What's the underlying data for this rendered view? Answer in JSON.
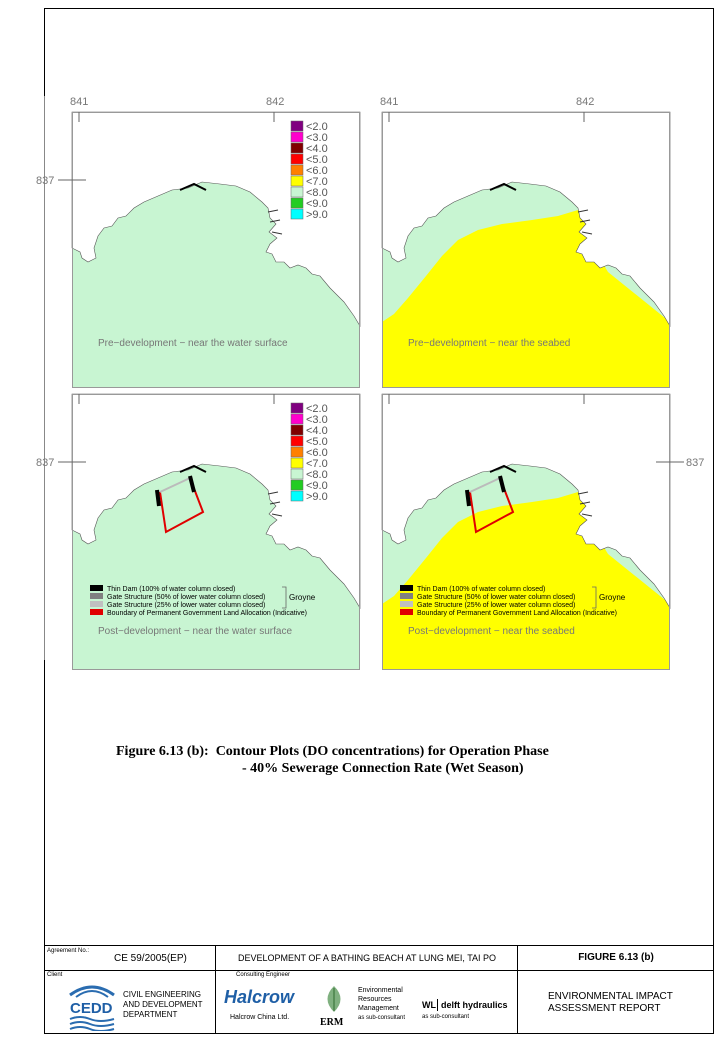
{
  "maps": [
    {
      "id": "a",
      "caption": "Pre−development − near the water surface",
      "mode": "surface",
      "post": false,
      "legend": true,
      "right_y": false
    },
    {
      "id": "b",
      "caption": "Pre−development − near the seabed",
      "mode": "seabed",
      "post": false,
      "legend": false,
      "right_y": false
    },
    {
      "id": "c",
      "caption": "Post−development − near the water surface",
      "mode": "surface",
      "post": true,
      "legend": true,
      "right_y": false
    },
    {
      "id": "d",
      "caption": "Post−development − near the seabed",
      "mode": "seabed",
      "post": true,
      "legend": false,
      "right_y": true
    }
  ],
  "axes": {
    "x1": "841",
    "x2": "842",
    "y": "837"
  },
  "legend_items": [
    {
      "label": "<2.0",
      "color": "#800080"
    },
    {
      "label": "<3.0",
      "color": "#ff00cc"
    },
    {
      "label": "<4.0",
      "color": "#800000"
    },
    {
      "label": "<5.0",
      "color": "#ff0000"
    },
    {
      "label": "<6.0",
      "color": "#ff8000"
    },
    {
      "label": "<7.0",
      "color": "#ffff00"
    },
    {
      "label": "<8.0",
      "color": "#c8f5d2"
    },
    {
      "label": "<9.0",
      "color": "#22cc22"
    },
    {
      "label": ">9.0",
      "color": "#00ffff"
    }
  ],
  "structure_legend": [
    {
      "label": "Thin Dam (100% of water column closed)",
      "color": "#000000"
    },
    {
      "label": "Gate Structure (50% of lower water column closed)",
      "color": "#808080"
    },
    {
      "label": "Gate Structure (25% of lower water column closed)",
      "color": "#c0c0c0"
    },
    {
      "label": "Boundary of Permanent Government Land Allocation (Indicative)",
      "color": "#e00000"
    }
  ],
  "groyne_label": "Groyne",
  "colors": {
    "sea_surface": "#c8f5d2",
    "seabed": "#ffff00",
    "land": "#ffffff"
  },
  "figure": {
    "label": "Figure 6.13 (b):",
    "line1": "Contour Plots (DO concentrations) for Operation Phase",
    "line2": "- 40% Sewerage Connection Rate (Wet Season)"
  },
  "footer": {
    "agreement_label": "Agreement No.:",
    "agreement": "CE 59/2005(EP)",
    "project": "DEVELOPMENT OF A BATHING BEACH AT LUNG MEI, TAI PO",
    "figure_no": "FIGURE 6.13 (b)",
    "client_label": "Client",
    "cedd": "CEDD",
    "cedd_text": "CIVIL ENGINEERING AND DEVELOPMENT DEPARTMENT",
    "consulting_label": "Consulting Engineer",
    "halcrow": "Halcrow",
    "halcrow_sub": "Halcrow China Ltd.",
    "erm": "ERM",
    "erm_text": "Environmental Resources Management",
    "erm_sub": "as sub-consultant",
    "wl": "WL",
    "delft": "delft hydraulics",
    "delft_sub": "as sub-consultant",
    "report": "ENVIRONMENTAL IMPACT ASSESSMENT REPORT"
  }
}
